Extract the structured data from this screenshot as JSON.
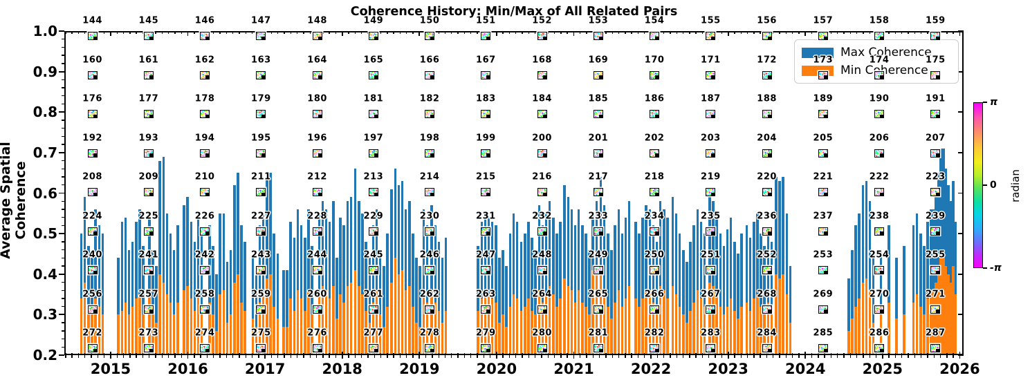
{
  "title": "Coherence History: Min/Max of All Related Pairs",
  "axes": {
    "ylabel": "Average Spatial Coherence",
    "x_ticks": [
      "2015",
      "2016",
      "2017",
      "2018",
      "2019",
      "2020",
      "2021",
      "2022",
      "2023",
      "2024",
      "2025",
      "2026"
    ],
    "y_ticks": [
      "1.0",
      "0.9",
      "0.8",
      "0.7",
      "0.6",
      "0.5",
      "0.4",
      "0.3",
      "0.2"
    ],
    "xlim": [
      2014.4,
      2026.05
    ],
    "ylim": [
      0.2,
      1.0
    ]
  },
  "legend": {
    "items": [
      {
        "label": "Max Coherence",
        "color": "#1f77b4"
      },
      {
        "label": "Min Coherence",
        "color": "#ff7f0e"
      }
    ]
  },
  "colorbar": {
    "label": "radian",
    "ticks": [
      "π",
      "0",
      "-π"
    ],
    "cycle_colors": [
      "#fb00ff",
      "#ff57ac",
      "#ff8f68",
      "#fdc637",
      "#f2ee1c",
      "#b7ef2a",
      "#55e35c",
      "#0ddfa3",
      "#06d4e8",
      "#2fa9fb",
      "#6f6cff",
      "#c427ff",
      "#fb00ff"
    ]
  },
  "pair_grid": {
    "columns": 16,
    "rows": 9,
    "numbers": [
      144,
      145,
      146,
      147,
      148,
      149,
      150,
      151,
      152,
      153,
      154,
      155,
      156,
      157,
      158,
      159,
      160,
      161,
      162,
      163,
      164,
      165,
      166,
      167,
      168,
      169,
      170,
      171,
      172,
      173,
      174,
      175,
      176,
      177,
      178,
      179,
      180,
      181,
      182,
      183,
      184,
      185,
      186,
      187,
      188,
      189,
      190,
      191,
      192,
      193,
      194,
      195,
      196,
      197,
      198,
      199,
      200,
      201,
      202,
      203,
      204,
      205,
      206,
      207,
      208,
      209,
      210,
      211,
      212,
      213,
      214,
      215,
      216,
      217,
      218,
      219,
      220,
      221,
      222,
      223,
      224,
      225,
      226,
      227,
      228,
      229,
      230,
      231,
      232,
      233,
      234,
      235,
      236,
      237,
      238,
      239,
      240,
      241,
      242,
      243,
      244,
      245,
      246,
      247,
      248,
      249,
      250,
      251,
      252,
      253,
      254,
      255,
      256,
      257,
      258,
      259,
      260,
      261,
      262,
      263,
      264,
      265,
      266,
      267,
      268,
      269,
      270,
      271,
      272,
      273,
      274,
      275,
      276,
      277,
      278,
      279,
      280,
      281,
      282,
      283,
      284,
      285,
      286,
      287
    ]
  },
  "chart_data": {
    "type": "bar",
    "title": "Coherence History: Min/Max of All Related Pairs",
    "xlabel": "",
    "ylabel": "Average Spatial Coherence",
    "xlim": [
      2014.4,
      2026.05
    ],
    "ylim": [
      0.2,
      1.0
    ],
    "grid": false,
    "legend_position": "upper right",
    "series_names": [
      "Max Coherence",
      "Min Coherence"
    ],
    "series_colors": [
      "#1f77b4",
      "#ff7f0e"
    ],
    "bar_clusters": [
      {
        "start": 2014.62,
        "step": 0.046,
        "max": [
          0.5,
          0.59,
          0.47,
          0.44,
          0.56,
          0.52,
          0.5
        ],
        "min": [
          0.34,
          0.38,
          0.31,
          0.3,
          0.34,
          0.32,
          0.3
        ]
      },
      {
        "start": 2015.1,
        "step": 0.046,
        "max": [
          0.44,
          0.53,
          0.54,
          0.46,
          0.48,
          0.53,
          0.56,
          0.47
        ],
        "min": [
          0.3,
          0.31,
          0.33,
          0.3,
          0.32,
          0.34,
          0.35,
          0.3
        ]
      },
      {
        "start": 2015.5,
        "step": 0.046,
        "max": [
          0.55,
          0.46,
          0.42,
          0.68,
          0.69,
          0.55,
          0.5,
          0.46,
          0.52
        ],
        "min": [
          0.35,
          0.3,
          0.28,
          0.4,
          0.38,
          0.35,
          0.33,
          0.3,
          0.33
        ]
      },
      {
        "start": 2015.95,
        "step": 0.046,
        "max": [
          0.57,
          0.59,
          0.53,
          0.48,
          0.55,
          0.5
        ],
        "min": [
          0.36,
          0.37,
          0.34,
          0.31,
          0.35,
          0.32
        ]
      },
      {
        "start": 2016.28,
        "step": 0.046,
        "max": [
          0.52,
          0.47,
          0.4,
          0.55,
          0.55,
          0.43,
          0.46,
          0.62,
          0.65,
          0.52,
          0.48
        ],
        "min": [
          0.33,
          0.3,
          0.26,
          0.35,
          0.36,
          0.28,
          0.3,
          0.38,
          0.4,
          0.33,
          0.31
        ]
      },
      {
        "start": 2016.84,
        "step": 0.046,
        "max": [
          0.44,
          0.41,
          0.52,
          0.55,
          0.64,
          0.65,
          0.5,
          0.45
        ],
        "min": [
          0.29,
          0.27,
          0.33,
          0.35,
          0.39,
          0.4,
          0.32,
          0.29
        ]
      },
      {
        "start": 2017.24,
        "step": 0.046,
        "max": [
          0.41,
          0.41,
          0.53,
          0.49,
          0.56,
          0.52,
          0.49,
          0.56,
          0.47
        ],
        "min": [
          0.27,
          0.27,
          0.34,
          0.31,
          0.36,
          0.34,
          0.31,
          0.36,
          0.3
        ]
      },
      {
        "start": 2017.7,
        "step": 0.046,
        "max": [
          0.55,
          0.58,
          0.56,
          0.53,
          0.58,
          0.44,
          0.54,
          0.52,
          0.58,
          0.59
        ],
        "min": [
          0.35,
          0.37,
          0.36,
          0.34,
          0.37,
          0.29,
          0.35,
          0.33,
          0.37,
          0.38
        ]
      },
      {
        "start": 2018.17,
        "step": 0.046,
        "max": [
          0.66,
          0.58,
          0.55,
          0.48,
          0.44,
          0.52,
          0.56,
          0.46,
          0.42,
          0.5
        ],
        "min": [
          0.41,
          0.37,
          0.35,
          0.31,
          0.28,
          0.33,
          0.36,
          0.3,
          0.27,
          0.32
        ]
      },
      {
        "start": 2018.64,
        "step": 0.046,
        "max": [
          0.61,
          0.66,
          0.62,
          0.63,
          0.56,
          0.58,
          0.5,
          0.44,
          0.42,
          0.56,
          0.52
        ],
        "min": [
          0.38,
          0.44,
          0.4,
          0.41,
          0.36,
          0.37,
          0.32,
          0.28,
          0.27,
          0.36,
          0.33
        ]
      },
      {
        "start": 2019.16,
        "step": 0.046,
        "max": [
          0.57,
          0.52,
          0.48,
          0.44,
          0.49
        ],
        "min": [
          0.36,
          0.33,
          0.31,
          0.28,
          0.31
        ]
      },
      {
        "start": 2019.76,
        "step": 0.046,
        "max": [
          0.47,
          0.53,
          0.55,
          0.54,
          0.53,
          0.52,
          0.44,
          0.46,
          0.42,
          0.5,
          0.55,
          0.53
        ],
        "min": [
          0.31,
          0.34,
          0.35,
          0.35,
          0.34,
          0.33,
          0.28,
          0.3,
          0.27,
          0.32,
          0.35,
          0.34
        ]
      },
      {
        "start": 2020.32,
        "step": 0.046,
        "max": [
          0.48,
          0.5,
          0.53,
          0.49,
          0.46,
          0.57,
          0.52,
          0.55,
          0.58,
          0.54,
          0.5,
          0.53
        ],
        "min": [
          0.31,
          0.32,
          0.34,
          0.31,
          0.3,
          0.36,
          0.33,
          0.35,
          0.37,
          0.35,
          0.32,
          0.34
        ]
      },
      {
        "start": 2020.88,
        "step": 0.046,
        "max": [
          0.62,
          0.59,
          0.56,
          0.52,
          0.56,
          0.52,
          0.5,
          0.46,
          0.55,
          0.58
        ],
        "min": [
          0.39,
          0.37,
          0.36,
          0.33,
          0.36,
          0.33,
          0.32,
          0.3,
          0.41,
          0.42
        ]
      },
      {
        "start": 2021.35,
        "step": 0.046,
        "max": [
          0.64,
          0.57,
          0.5,
          0.46,
          0.52,
          0.56,
          0.5,
          0.54,
          0.58
        ],
        "min": [
          0.4,
          0.36,
          0.32,
          0.29,
          0.33,
          0.36,
          0.32,
          0.34,
          0.37
        ]
      },
      {
        "start": 2021.8,
        "step": 0.046,
        "max": [
          0.53,
          0.5,
          0.54,
          0.57,
          0.56,
          0.52,
          0.48,
          0.58,
          0.56,
          0.54
        ],
        "min": [
          0.34,
          0.32,
          0.34,
          0.36,
          0.36,
          0.33,
          0.31,
          0.37,
          0.36,
          0.34
        ]
      },
      {
        "start": 2022.28,
        "step": 0.046,
        "max": [
          0.59,
          0.55,
          0.5,
          0.46,
          0.43,
          0.48,
          0.52,
          0.56,
          0.53,
          0.5
        ],
        "min": [
          0.37,
          0.35,
          0.32,
          0.3,
          0.28,
          0.31,
          0.33,
          0.36,
          0.34,
          0.32
        ]
      },
      {
        "start": 2022.76,
        "step": 0.046,
        "max": [
          0.61,
          0.58,
          0.55,
          0.5,
          0.47,
          0.51,
          0.54,
          0.48,
          0.45,
          0.5
        ],
        "min": [
          0.38,
          0.37,
          0.35,
          0.32,
          0.3,
          0.32,
          0.34,
          0.31,
          0.29,
          0.32
        ]
      },
      {
        "start": 2023.24,
        "step": 0.046,
        "max": [
          0.52,
          0.49,
          0.53,
          0.55,
          0.5,
          0.47,
          0.51,
          0.48
        ],
        "min": [
          0.33,
          0.31,
          0.34,
          0.35,
          0.32,
          0.3,
          0.33,
          0.31
        ]
      },
      {
        "start": 2023.62,
        "step": 0.046,
        "max": [
          0.64,
          0.63,
          0.64,
          0.55,
          0.42
        ],
        "min": [
          0.4,
          0.39,
          0.4,
          0.35,
          0.28
        ]
      },
      {
        "start": 2024.56,
        "step": 0.046,
        "max": [
          0.39,
          0.46,
          0.52,
          0.55,
          0.62,
          0.63,
          0.58,
          0.44
        ],
        "min": [
          0.26,
          0.29,
          0.32,
          0.34,
          0.38,
          0.39,
          0.36,
          0.28
        ]
      },
      {
        "start": 2024.98,
        "step": 0.1,
        "max": [
          0.46,
          0.52,
          0.44,
          0.47
        ],
        "min": [
          0.3,
          0.33,
          0.29,
          0.3
        ]
      },
      {
        "start": 2025.4,
        "step": 0.046,
        "max": [
          0.52,
          0.55,
          0.5,
          0.47,
          0.53,
          0.56
        ],
        "min": [
          0.33,
          0.35,
          0.32,
          0.3,
          0.34,
          0.36
        ]
      },
      {
        "start": 2025.66,
        "step": 0.032,
        "max": [
          0.56,
          0.6,
          0.65,
          0.71,
          0.71,
          0.66,
          0.62,
          0.58,
          0.63,
          0.53
        ],
        "min": [
          0.36,
          0.38,
          0.41,
          0.44,
          0.45,
          0.42,
          0.4,
          0.38,
          0.42,
          0.35
        ]
      }
    ]
  }
}
